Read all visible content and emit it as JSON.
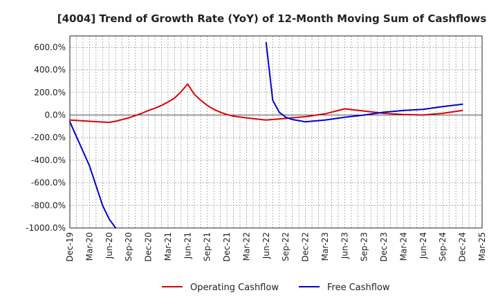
{
  "chart_data": {
    "type": "line",
    "title": "[4004]  Trend of Growth Rate (YoY) of 12-Month Moving Sum of Cashflows",
    "xlabel": "",
    "ylabel": "",
    "ylim": [
      -1000,
      700
    ],
    "y_ticks": [
      600,
      400,
      200,
      0,
      -200,
      -400,
      -600,
      -800,
      -1000
    ],
    "y_tick_labels": [
      "600.0%",
      "400.0%",
      "200.0%",
      "0.0%",
      "-200.0%",
      "-400.0%",
      "-600.0%",
      "-800.0%",
      "-1000.0%"
    ],
    "x_tick_labels": [
      "Dec-19",
      "Mar-20",
      "Jun-20",
      "Sep-20",
      "Dec-20",
      "Mar-21",
      "Jun-21",
      "Sep-21",
      "Dec-21",
      "Mar-22",
      "Jun-22",
      "Sep-22",
      "Dec-22",
      "Mar-23",
      "Jun-23",
      "Sep-23",
      "Dec-23",
      "Mar-24",
      "Jun-24",
      "Sep-24",
      "Dec-24",
      "Mar-25"
    ],
    "grid": true,
    "legend_position": "bottom",
    "series": [
      {
        "name": "Operating Cashflow",
        "color": "#dd0000",
        "points": [
          [
            "Dec-19",
            -45
          ],
          [
            "Mar-20",
            -55
          ],
          [
            "Jun-20",
            -65
          ],
          [
            "Jul-20",
            -55
          ],
          [
            "Aug-20",
            -40
          ],
          [
            "Sep-20",
            -25
          ],
          [
            "Oct-20",
            -5
          ],
          [
            "Nov-20",
            15
          ],
          [
            "Dec-20",
            40
          ],
          [
            "Jan-21",
            60
          ],
          [
            "Feb-21",
            85
          ],
          [
            "Mar-21",
            115
          ],
          [
            "Apr-21",
            150
          ],
          [
            "May-21",
            205
          ],
          [
            "Jun-21",
            275
          ],
          [
            "Jul-21",
            185
          ],
          [
            "Aug-21",
            130
          ],
          [
            "Sep-21",
            85
          ],
          [
            "Oct-21",
            50
          ],
          [
            "Nov-21",
            25
          ],
          [
            "Dec-21",
            5
          ],
          [
            "Jan-22",
            -10
          ],
          [
            "Mar-22",
            -25
          ],
          [
            "Jun-22",
            -45
          ],
          [
            "Sep-22",
            -30
          ],
          [
            "Dec-22",
            -15
          ],
          [
            "Mar-23",
            10
          ],
          [
            "Jun-23",
            55
          ],
          [
            "Sep-23",
            35
          ],
          [
            "Dec-23",
            15
          ],
          [
            "Mar-24",
            5
          ],
          [
            "Jun-24",
            0
          ],
          [
            "Sep-24",
            15
          ],
          [
            "Dec-24",
            40
          ]
        ]
      },
      {
        "name": "Free Cashflow",
        "color": "#0000cc",
        "segments": [
          [
            [
              "Dec-19",
              -60
            ],
            [
              "Mar-20",
              -450
            ],
            [
              "May-20",
              -800
            ],
            [
              "Jun-20",
              -920
            ],
            [
              "Jul-20",
              -1000
            ]
          ],
          [
            [
              "Jun-22",
              640
            ],
            [
              "Jul-22",
              130
            ],
            [
              "Aug-22",
              25
            ],
            [
              "Sep-22",
              -20
            ],
            [
              "Oct-22",
              -40
            ],
            [
              "Dec-22",
              -60
            ],
            [
              "Mar-23",
              -45
            ],
            [
              "Jun-23",
              -20
            ],
            [
              "Sep-23",
              0
            ],
            [
              "Dec-23",
              25
            ],
            [
              "Mar-24",
              40
            ],
            [
              "Jun-24",
              50
            ],
            [
              "Sep-24",
              75
            ],
            [
              "Dec-24",
              95
            ]
          ]
        ]
      }
    ]
  }
}
